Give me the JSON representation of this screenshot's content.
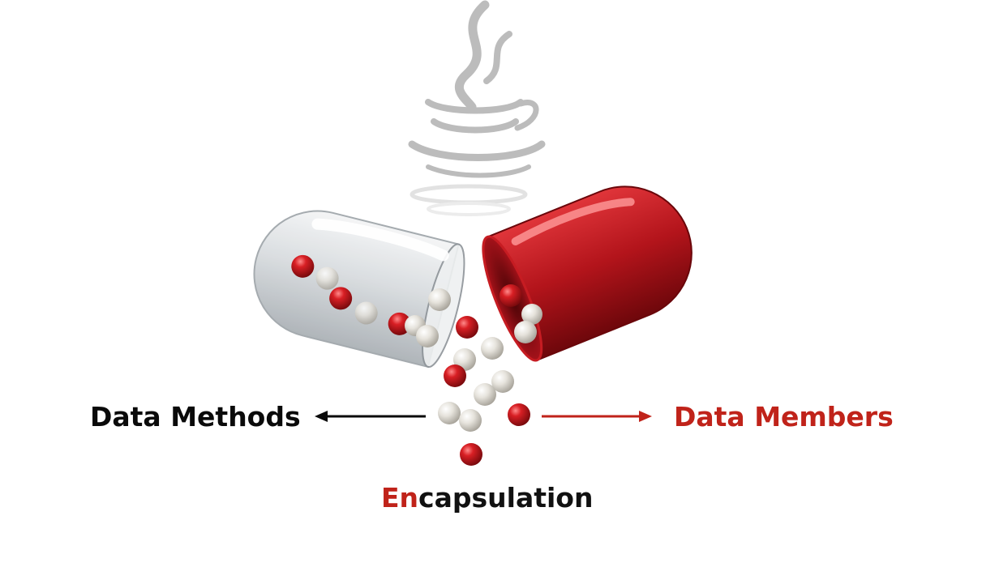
{
  "labels": {
    "left": "Data Methods",
    "right": "Data Members",
    "bottom_accent": "En",
    "bottom_rest": "capsulation"
  },
  "colors": {
    "accent_red": "#c0231a",
    "text_dark": "#0a0a0a",
    "logo_gray": "#bdbdbd",
    "capsule_clear": "#d9dde0",
    "capsule_red": "#b1141a",
    "bead_white": "#e4e2dc"
  },
  "icons": {
    "logo": "java-coffee-cup-logo",
    "left_arrow": "arrow-left-icon",
    "right_arrow": "arrow-right-icon"
  }
}
